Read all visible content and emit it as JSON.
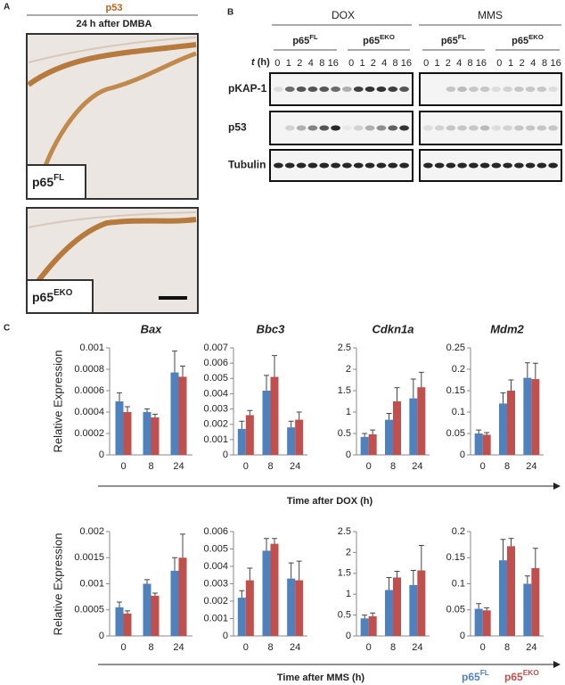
{
  "panel_a": {
    "label": "A",
    "title": "p53",
    "subtitle": "24 h after DMBA",
    "images": [
      {
        "label": {
          "base": "p65",
          "sup": "FL"
        }
      },
      {
        "label": {
          "base": "p65",
          "sup": "EKO"
        }
      }
    ]
  },
  "panel_b": {
    "label": "B",
    "treatments": [
      "DOX",
      "MMS"
    ],
    "genotypes": [
      {
        "base": "p65",
        "sup": "FL"
      },
      {
        "base": "p65",
        "sup": "EKO"
      }
    ],
    "time_var": "t",
    "time_unit": "(h)",
    "lanes": [
      0,
      1,
      2,
      4,
      8,
      16
    ],
    "rows": [
      "pKAP-1",
      "p53",
      "Tubulin"
    ]
  },
  "panel_c": {
    "label": "C",
    "y_label": "Relative Expression",
    "x_labels": [
      "Time after DOX (h)",
      "Time after MMS (h)"
    ],
    "legend": [
      {
        "base": "p65",
        "sup": "FL",
        "color": "#4f81bd"
      },
      {
        "base": "p65",
        "sup": "EKO",
        "color": "#c0504d"
      }
    ]
  },
  "chart_data": [
    {
      "type": "bar",
      "title": "Bax",
      "categories": [
        "0",
        "8",
        "24"
      ],
      "ylim": [
        0,
        0.001
      ],
      "yticks": [
        0,
        0.0002,
        0.0004,
        0.0006,
        0.0008,
        0.001
      ],
      "series": [
        {
          "color": "#4f81bd",
          "values": [
            0.0005,
            0.0004,
            0.00077
          ],
          "errors": [
            8e-05,
            3e-05,
            0.0002
          ]
        },
        {
          "color": "#c0504d",
          "values": [
            0.0004,
            0.00035,
            0.00073
          ],
          "errors": [
            5e-05,
            3e-05,
            0.0001
          ]
        }
      ]
    },
    {
      "type": "bar",
      "title": "Bbc3",
      "categories": [
        "0",
        "8",
        "24"
      ],
      "ylim": [
        0,
        0.007
      ],
      "yticks": [
        0,
        0.001,
        0.002,
        0.003,
        0.004,
        0.005,
        0.006,
        0.007
      ],
      "series": [
        {
          "color": "#4f81bd",
          "values": [
            0.0017,
            0.0042,
            0.0018
          ],
          "errors": [
            0.0005,
            0.001,
            0.0004
          ]
        },
        {
          "color": "#c0504d",
          "values": [
            0.0026,
            0.0051,
            0.0023
          ],
          "errors": [
            0.0003,
            0.0014,
            0.0005
          ]
        }
      ]
    },
    {
      "type": "bar",
      "title": "Cdkn1a",
      "categories": [
        "0",
        "8",
        "24"
      ],
      "ylim": [
        0,
        2.5
      ],
      "yticks": [
        0,
        0.5,
        1,
        1.5,
        2,
        2.5
      ],
      "series": [
        {
          "color": "#4f81bd",
          "values": [
            0.42,
            0.82,
            1.32
          ],
          "errors": [
            0.08,
            0.15,
            0.45
          ]
        },
        {
          "color": "#c0504d",
          "values": [
            0.48,
            1.25,
            1.58
          ],
          "errors": [
            0.1,
            0.32,
            0.35
          ]
        }
      ]
    },
    {
      "type": "bar",
      "title": "Mdm2",
      "categories": [
        "0",
        "8",
        "24"
      ],
      "ylim": [
        0,
        0.25
      ],
      "yticks": [
        0,
        0.05,
        0.1,
        0.15,
        0.2,
        0.25
      ],
      "series": [
        {
          "color": "#4f81bd",
          "values": [
            0.05,
            0.12,
            0.18
          ],
          "errors": [
            0.008,
            0.025,
            0.035
          ]
        },
        {
          "color": "#c0504d",
          "values": [
            0.047,
            0.15,
            0.177
          ],
          "errors": [
            0.005,
            0.025,
            0.037
          ]
        }
      ]
    },
    {
      "type": "bar",
      "title": "",
      "categories": [
        "0",
        "8",
        "24"
      ],
      "ylim": [
        0,
        0.002
      ],
      "yticks": [
        0,
        0.0005,
        0.001,
        0.0015,
        0.002
      ],
      "series": [
        {
          "color": "#4f81bd",
          "values": [
            0.00055,
            0.001,
            0.00125
          ],
          "errors": [
            0.0001,
            8e-05,
            0.00025
          ]
        },
        {
          "color": "#c0504d",
          "values": [
            0.00043,
            0.00077,
            0.0015
          ],
          "errors": [
            5e-05,
            5e-05,
            0.00045
          ]
        }
      ]
    },
    {
      "type": "bar",
      "title": "",
      "categories": [
        "0",
        "8",
        "24"
      ],
      "ylim": [
        0,
        0.006
      ],
      "yticks": [
        0,
        0.001,
        0.002,
        0.003,
        0.004,
        0.005,
        0.006
      ],
      "series": [
        {
          "color": "#4f81bd",
          "values": [
            0.0022,
            0.0049,
            0.0033
          ],
          "errors": [
            0.0004,
            0.0007,
            0.0009
          ]
        },
        {
          "color": "#c0504d",
          "values": [
            0.0032,
            0.0053,
            0.0032
          ],
          "errors": [
            0.0007,
            0.0003,
            0.0011
          ]
        }
      ]
    },
    {
      "type": "bar",
      "title": "",
      "categories": [
        "0",
        "8",
        "24"
      ],
      "ylim": [
        0,
        2.5
      ],
      "yticks": [
        0,
        0.5,
        1,
        1.5,
        2,
        2.5
      ],
      "series": [
        {
          "color": "#4f81bd",
          "values": [
            0.42,
            1.1,
            1.22
          ],
          "errors": [
            0.08,
            0.3,
            0.35
          ]
        },
        {
          "color": "#c0504d",
          "values": [
            0.47,
            1.4,
            1.57
          ],
          "errors": [
            0.08,
            0.15,
            0.6
          ]
        }
      ]
    },
    {
      "type": "bar",
      "title": "",
      "categories": [
        "0",
        "8",
        "24"
      ],
      "ylim": [
        0,
        0.2
      ],
      "yticks": [
        0,
        0.05,
        0.1,
        0.15,
        0.2
      ],
      "series": [
        {
          "color": "#4f81bd",
          "values": [
            0.052,
            0.145,
            0.1
          ],
          "errors": [
            0.01,
            0.04,
            0.015
          ]
        },
        {
          "color": "#c0504d",
          "values": [
            0.049,
            0.172,
            0.13
          ],
          "errors": [
            0.005,
            0.015,
            0.038
          ]
        }
      ]
    }
  ]
}
